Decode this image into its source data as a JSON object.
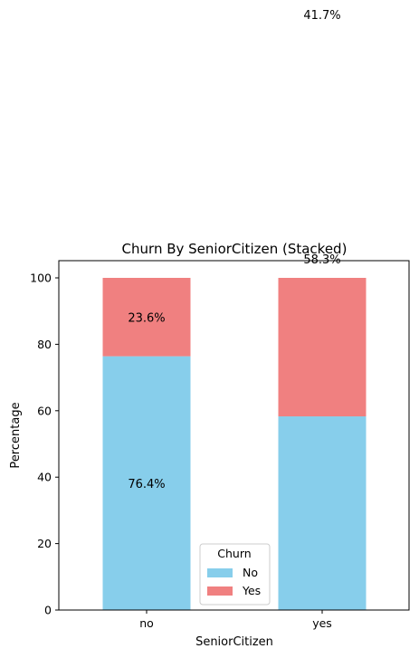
{
  "chart_data": {
    "type": "bar",
    "stacked": true,
    "title": "Churn By SeniorCitizen (Stacked)",
    "xlabel": "SeniorCitizen",
    "ylabel": "Percentage",
    "categories": [
      "no",
      "yes"
    ],
    "ylim": [
      0,
      105
    ],
    "yticks": [
      0,
      20,
      40,
      60,
      80,
      100
    ],
    "series": [
      {
        "name": "No",
        "values": [
          76.4,
          58.3
        ],
        "labels": [
          "76.4%",
          "58.3%"
        ],
        "color": "#87CEEB"
      },
      {
        "name": "Yes",
        "values": [
          23.6,
          41.7
        ],
        "labels": [
          "23.6%",
          "41.7%"
        ],
        "color": "#F08080"
      }
    ],
    "legend": {
      "title": "Churn",
      "placement": "lower-center"
    },
    "grid": false
  }
}
